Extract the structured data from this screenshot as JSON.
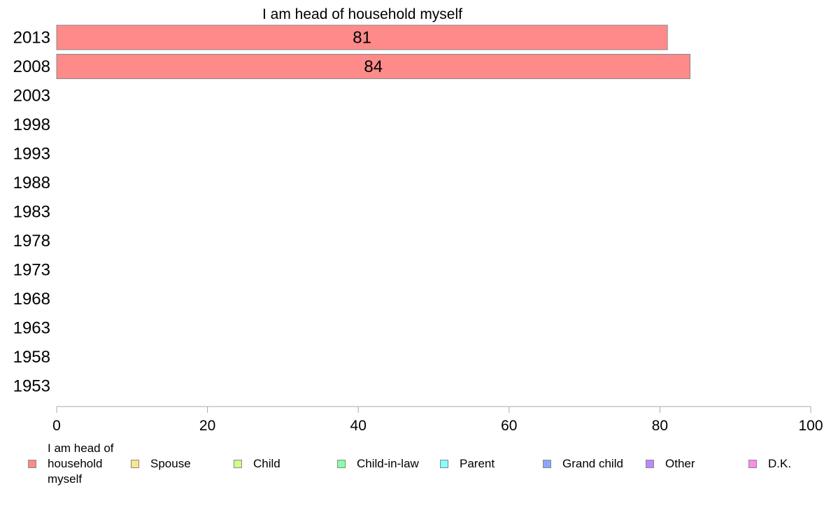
{
  "chart_data": {
    "type": "bar",
    "orientation": "horizontal",
    "title": "I am head of household myself",
    "categories": [
      "2013",
      "2008",
      "2003",
      "1998",
      "1993",
      "1988",
      "1983",
      "1978",
      "1973",
      "1968",
      "1963",
      "1958",
      "1953"
    ],
    "series": [
      {
        "name": "I am head of household myself",
        "color": "#ff8a8a",
        "values": [
          81,
          84,
          null,
          null,
          null,
          null,
          null,
          null,
          null,
          null,
          null,
          null,
          null
        ],
        "labels": [
          "81",
          "84",
          "",
          "",
          "",
          "",
          "",
          "",
          "",
          "",
          "",
          "",
          ""
        ]
      }
    ],
    "xlim": [
      0,
      100
    ],
    "xticks": [
      "0",
      "20",
      "40",
      "60",
      "80",
      "100"
    ],
    "grid": false,
    "legend_position": "bottom"
  },
  "legend": {
    "items": [
      {
        "label": "I am head of household myself",
        "color": "#ff8a8a"
      },
      {
        "label": "Spouse",
        "color": "#ffe58a"
      },
      {
        "label": "Child",
        "color": "#ccff8a"
      },
      {
        "label": "Child-in-law",
        "color": "#8affa8"
      },
      {
        "label": "Parent",
        "color": "#8affff"
      },
      {
        "label": "Grand child",
        "color": "#8aa8ff"
      },
      {
        "label": "Other",
        "color": "#b88aff"
      },
      {
        "label": "D.K.",
        "color": "#ff8aee"
      }
    ]
  }
}
